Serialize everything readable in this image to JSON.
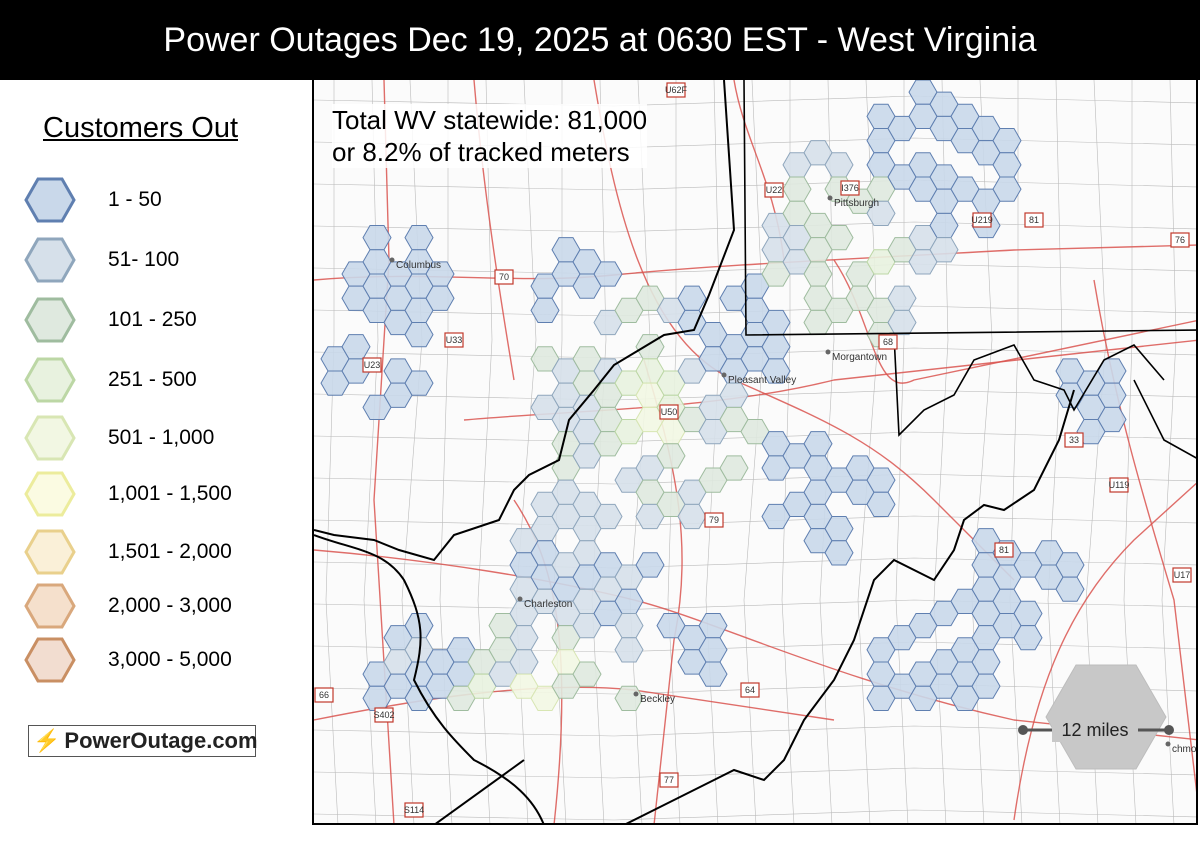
{
  "title": "Power Outages Dec 19, 2025 at 0630 EST - West Virginia",
  "legend": {
    "heading": "Customers Out",
    "items": [
      {
        "label": "1 - 50",
        "fill": "#c9d8ea",
        "stroke": "#5f7fb0"
      },
      {
        "label": "51- 100",
        "fill": "#d6e0ea",
        "stroke": "#8fa6bc"
      },
      {
        "label": "101 - 250",
        "fill": "#dfe9df",
        "stroke": "#9fbc9f"
      },
      {
        "label": "251 - 500",
        "fill": "#e8f2df",
        "stroke": "#bcd7a5"
      },
      {
        "label": "501 - 1,000",
        "fill": "#f2f7e3",
        "stroke": "#d8e6b3"
      },
      {
        "label": "1,001 - 1,500",
        "fill": "#fbfbe2",
        "stroke": "#ecec9c"
      },
      {
        "label": "1,501 - 2,000",
        "fill": "#faf0d8",
        "stroke": "#e9d08c"
      },
      {
        "label": "2,000 - 3,000",
        "fill": "#f5e0cc",
        "stroke": "#d9a87c"
      },
      {
        "label": "3,000 - 5,000",
        "fill": "#f2ddd0",
        "stroke": "#c98f63"
      }
    ]
  },
  "logo": {
    "text": "PowerOutage.com",
    "icon": "lightning-bolt-icon"
  },
  "stats": {
    "line1": "Total WV statewide: 81,000",
    "line2": "or 8.2% of tracked meters"
  },
  "cities": {
    "columbus": "Columbus",
    "pittsburgh": "Pittsburgh",
    "morgantown": "Morgantown",
    "pleasant_valley": "Pleasant Valley",
    "charleston": "Charleston",
    "beckley": "Beckley",
    "richmond": "chmond"
  },
  "highways": [
    "70",
    "79",
    "68",
    "77",
    "64",
    "81",
    "76",
    "U50",
    "U33",
    "U23",
    "U22",
    "U62F",
    "I376",
    "U219",
    "81",
    "33",
    "U119",
    "S114",
    "S402",
    "66",
    "U17"
  ],
  "scale": {
    "label": "12 miles"
  },
  "colors": {
    "title_bg": "#000000",
    "road_red": "#d9534f",
    "border_black": "#000000",
    "county_gray": "#bbbbbb"
  }
}
